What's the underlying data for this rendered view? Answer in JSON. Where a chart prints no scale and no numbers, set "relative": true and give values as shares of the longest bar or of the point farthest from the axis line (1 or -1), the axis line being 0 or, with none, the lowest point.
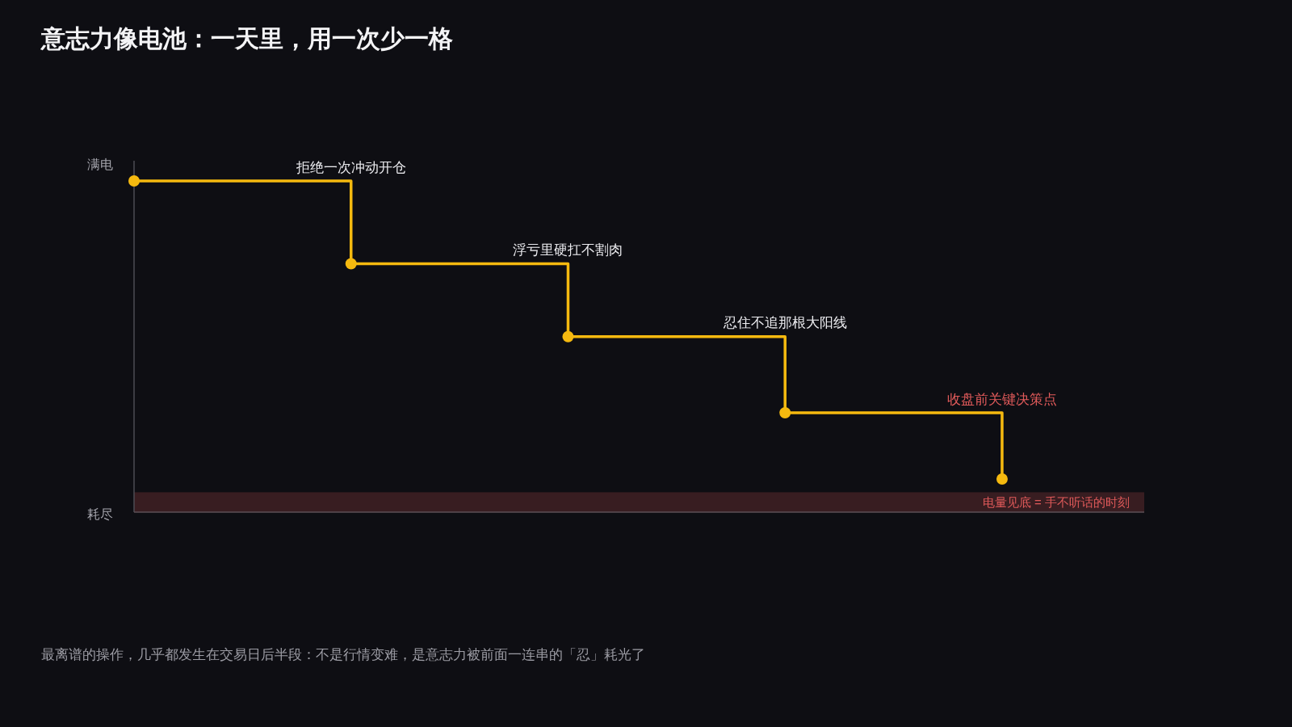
{
  "chart_data": {
    "type": "step",
    "title": "意志力像电池：一天里，用一次少一格",
    "categories": [
      null,
      "拒绝一次冲动开仓",
      "浮亏里硬扛不割肉",
      "忍住不追那根大阳线",
      "收盘前关键决策点"
    ],
    "relative": true,
    "series": [
      {
        "color": "#f5b90f",
        "values": [
          1,
          0.75,
          0.53,
          0.3,
          0.1
        ]
      }
    ],
    "marker": "circle",
    "bands": [
      {
        "axis": "y",
        "from": 0,
        "to": 0.06,
        "label": "电量见底 = 手不听话的时刻",
        "color": "#e05a5a"
      }
    ],
    "annotations": [
      "满电",
      "耗尽",
      "最离谱的操作，几乎都发生在交易日后半段：不是行情变难，是意志力被前面一连串的「忍」耗光了"
    ]
  }
}
